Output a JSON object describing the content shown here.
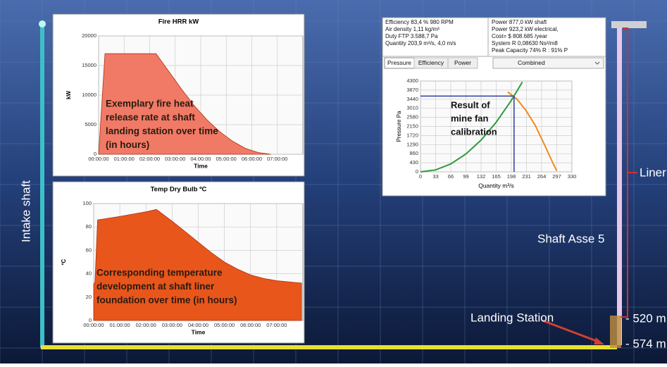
{
  "scene": {
    "intake_label": "Intake shaft",
    "liner_label": "Liner",
    "shaft_label": "Shaft Asse 5",
    "landing_label": "Landing Station",
    "depths": [
      "- 520 m",
      "- 574 m"
    ]
  },
  "fan_panel": {
    "info_left": [
      "Efficiency 83,4 %  980 RPM",
      "Air density  1,11 kg/m³",
      "Duty FTP 3.588,7 Pa",
      "Quantity 203,9 m³/s, 4,0 m/s"
    ],
    "info_right": [
      "Power 877,0 kW shaft",
      "Power 923,2 kW electrical,",
      "Cost= $ 808.685 /year",
      "System R 0,08630 Ns²/m8",
      "Peak Capacity 74% R : 91% P"
    ],
    "tabs": [
      "Pressure",
      "Efficiency",
      "Power"
    ],
    "dropdown": "Combined"
  },
  "chart_data": [
    {
      "type": "area",
      "title": "Fire HRR kW",
      "xlabel": "Time",
      "ylabel": "kW",
      "color": "#f07a66",
      "annotation": [
        "Exemplary fire heat",
        "release rate at shaft",
        "landing station over time",
        "(in hours)"
      ],
      "x": [
        0,
        0.25,
        2.25,
        2.75,
        3.25,
        3.75,
        4.25,
        4.75,
        5.25,
        5.75,
        6.25,
        6.75
      ],
      "values": [
        0,
        17000,
        17000,
        14000,
        11000,
        8200,
        5800,
        3800,
        2200,
        1000,
        300,
        0
      ],
      "xlim": [
        0,
        8
      ],
      "ylim": [
        0,
        20000
      ],
      "xticks": [
        {
          "value": 0,
          "label": "00:00:00"
        },
        {
          "value": 1,
          "label": "01:00:00"
        },
        {
          "value": 2,
          "label": "02:00:00"
        },
        {
          "value": 3,
          "label": "03:00:00"
        },
        {
          "value": 4,
          "label": "04:00:00"
        },
        {
          "value": 5,
          "label": "05:00:00"
        },
        {
          "value": 6,
          "label": "06:00:00"
        },
        {
          "value": 7,
          "label": "07:00:00"
        }
      ],
      "yticks": [
        0,
        5000,
        10000,
        15000,
        20000
      ],
      "grid": true
    },
    {
      "type": "area",
      "title": "Temp Dry Bulb ºC",
      "xlabel": "Time",
      "ylabel": "ºC",
      "color": "#e8561c",
      "annotation": [
        "Corresponding temperature",
        "development at shaft liner",
        "foundation over time (in hours)"
      ],
      "x": [
        0,
        0.05,
        0.15,
        1,
        2,
        2.4,
        3,
        3.5,
        4,
        4.5,
        5,
        5.5,
        6,
        6.5,
        7,
        7.5,
        7.95
      ],
      "values": [
        31,
        33,
        86,
        89,
        93,
        95,
        85,
        76,
        67,
        58,
        50,
        44,
        39,
        36,
        34,
        33,
        32
      ],
      "xlim": [
        0,
        8
      ],
      "ylim": [
        0,
        100
      ],
      "xticks": [
        {
          "value": 0,
          "label": "00:00:00"
        },
        {
          "value": 1,
          "label": "01:00:00"
        },
        {
          "value": 2,
          "label": "02:00:00"
        },
        {
          "value": 3,
          "label": "03:00:00"
        },
        {
          "value": 4,
          "label": "04:00:00"
        },
        {
          "value": 5,
          "label": "05:00:00"
        },
        {
          "value": 6,
          "label": "06:00:00"
        },
        {
          "value": 7,
          "label": "07:00:00"
        }
      ],
      "yticks": [
        0,
        20,
        40,
        60,
        80,
        100
      ],
      "grid": true
    },
    {
      "type": "line",
      "xlabel": "Quantity m³/s",
      "ylabel": "Pressure Pa",
      "annotation": [
        "Result of",
        "mine fan",
        "calibration"
      ],
      "series": [
        {
          "color": "#2e9a3c",
          "x": [
            0,
            33,
            66,
            99,
            132,
            165,
            198,
            222
          ],
          "values": [
            0,
            94,
            376,
            846,
            1504,
            2350,
            3383,
            4253
          ]
        },
        {
          "color": "#f08a1c",
          "x": [
            190,
            210,
            230,
            250,
            270,
            290,
            297
          ],
          "values": [
            3780,
            3450,
            2900,
            2200,
            1300,
            350,
            50
          ]
        }
      ],
      "operating_point": [
        203.9,
        3588.7
      ],
      "operating_color": "#2b3c9c",
      "xlim": [
        0,
        330
      ],
      "ylim": [
        0,
        4300
      ],
      "xticks": [
        0,
        33,
        66,
        99,
        132,
        165,
        198,
        231,
        264,
        297,
        330
      ],
      "yticks": [
        0,
        430,
        860,
        1290,
        1720,
        2150,
        2580,
        3010,
        3440,
        3870,
        4300
      ],
      "grid": true
    }
  ]
}
